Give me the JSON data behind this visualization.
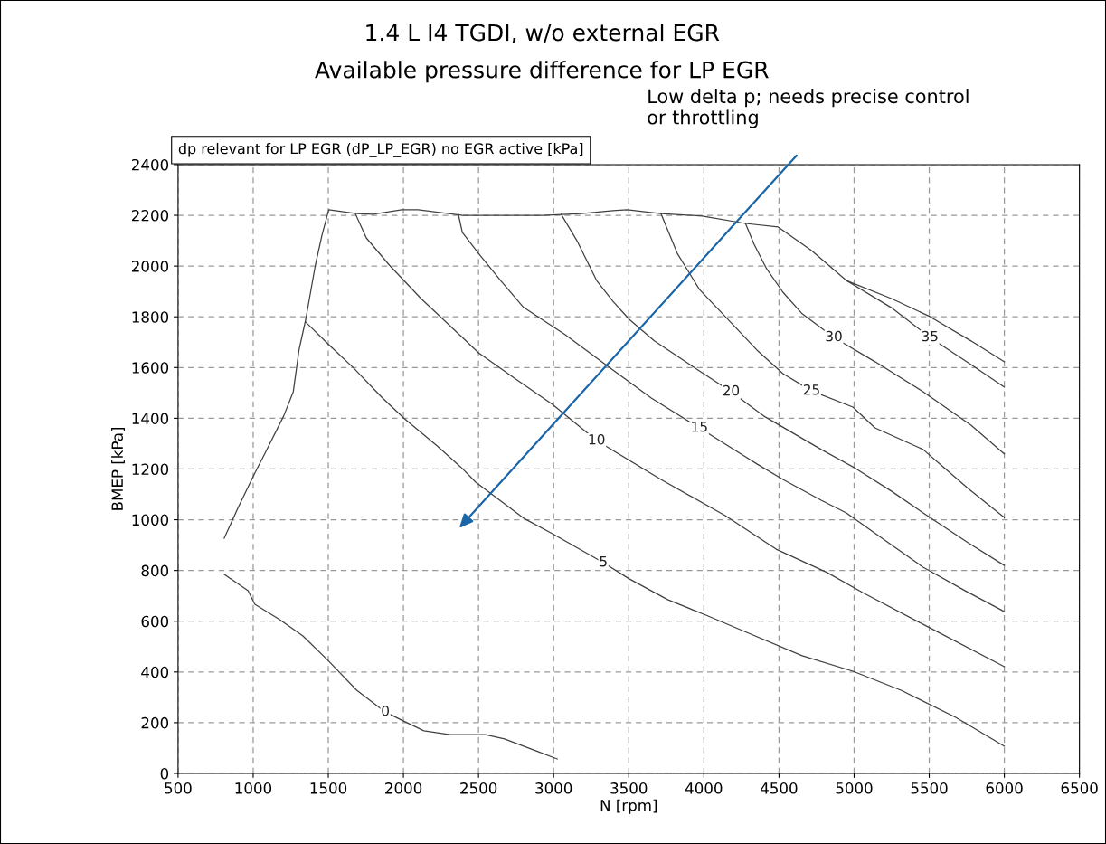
{
  "chart_data": {
    "type": "line",
    "title": "1.4 L I4 TGDI, w/o external EGR",
    "subtitle": "Available pressure difference for LP EGR",
    "xlabel": "N [rpm]",
    "ylabel": "BMEP [kPa]",
    "xlim": [
      500,
      6500
    ],
    "xticks": [
      500,
      1000,
      1500,
      2000,
      2500,
      3000,
      3500,
      4000,
      4500,
      5000,
      5500,
      6000,
      6500
    ],
    "ylim": [
      0,
      2400
    ],
    "yticks": [
      0,
      200,
      400,
      600,
      800,
      1000,
      1200,
      1400,
      1600,
      1800,
      2000,
      2200,
      2400
    ],
    "grid": true,
    "legend": false,
    "marker": "none",
    "line_style": "solid",
    "annotations": [
      "dp relevant for LP EGR (dP_LP_EGR) no EGR active [kPa]",
      "Low delta p; needs precise control\nor throttling"
    ],
    "series": [
      {
        "color": "#404040",
        "x": [
          807,
          903,
          1011,
          1082,
          1203,
          1267,
          1305,
          1350,
          1414,
          1458,
          1503,
          1689,
          1797,
          1989,
          2098,
          2392,
          2648,
          2929,
          3184,
          3395,
          3490,
          3714,
          3989,
          4277,
          4494,
          4717,
          4948,
          5248,
          5504,
          5778,
          6000
        ],
        "values": [
          927,
          1052,
          1184,
          1266,
          1409,
          1505,
          1669,
          1790,
          2004,
          2122,
          2222,
          2207,
          2204,
          2222,
          2222,
          2200,
          2200,
          2200,
          2207,
          2218,
          2222,
          2207,
          2197,
          2168,
          2154,
          2061,
          1943,
          1872,
          1801,
          1705,
          1623
        ]
      },
      {
        "name": "0",
        "color": "#404040",
        "x": [
          807,
          966,
          1011,
          1177,
          1331,
          1497,
          1689,
          1880,
          1989,
          2136,
          2309,
          2545,
          2673,
          2884,
          3024
        ],
        "values": [
          785,
          720,
          667,
          606,
          542,
          446,
          328,
          242,
          210,
          168,
          153,
          153,
          136,
          89,
          57
        ]
      },
      {
        "name": "5",
        "color": "#404040",
        "x": [
          1350,
          1497,
          1669,
          1861,
          2008,
          2225,
          2392,
          2481,
          2800,
          2992,
          3331,
          3503,
          3759,
          4014,
          4270,
          4654,
          4992,
          5312,
          5676,
          6000
        ],
        "values": [
          1779,
          1694,
          1598,
          1480,
          1398,
          1291,
          1202,
          1148,
          1006,
          945,
          831,
          767,
          685,
          624,
          560,
          464,
          403,
          328,
          221,
          107
        ]
      },
      {
        "name": "10",
        "color": "#404040",
        "x": [
          1682,
          1753,
          1906,
          2117,
          2290,
          2500,
          2756,
          2992,
          3286,
          3714,
          4142,
          4481,
          4820,
          5056,
          5459,
          6000
        ],
        "values": [
          2204,
          2111,
          2004,
          1872,
          1776,
          1658,
          1551,
          1455,
          1312,
          1159,
          1016,
          884,
          792,
          713,
          588,
          421
        ]
      },
      {
        "name": "15",
        "color": "#404040",
        "x": [
          2366,
          2392,
          2500,
          2647,
          2800,
          3075,
          3376,
          3650,
          3970,
          4353,
          4526,
          4781,
          4948,
          5203,
          5459,
          5740,
          6000
        ],
        "values": [
          2204,
          2133,
          2050,
          1943,
          1837,
          1730,
          1598,
          1480,
          1362,
          1220,
          1159,
          1077,
          1027,
          920,
          813,
          720,
          638
        ]
      },
      {
        "name": "20",
        "color": "#404040",
        "x": [
          3050,
          3158,
          3286,
          3395,
          3503,
          3670,
          3970,
          4181,
          4398,
          4781,
          5011,
          5248,
          5504,
          5759,
          6000
        ],
        "values": [
          2204,
          2097,
          1943,
          1861,
          1790,
          1705,
          1587,
          1505,
          1409,
          1277,
          1202,
          1113,
          1009,
          909,
          820
        ]
      },
      {
        "name": "25",
        "color": "#404040",
        "x": [
          3714,
          3823,
          3970,
          4142,
          4353,
          4526,
          4717,
          4992,
          5139,
          5459,
          5759,
          6000
        ],
        "values": [
          2207,
          2050,
          1908,
          1801,
          1669,
          1576,
          1508,
          1444,
          1362,
          1277,
          1123,
          1009
        ]
      },
      {
        "name": "30",
        "color": "#404040",
        "x": [
          4277,
          4334,
          4417,
          4526,
          4654,
          4865,
          5139,
          5459,
          5778,
          6000
        ],
        "values": [
          2168,
          2086,
          1990,
          1897,
          1812,
          1719,
          1623,
          1505,
          1373,
          1259
        ]
      },
      {
        "name": "35",
        "color": "#404040",
        "x": [
          4948,
          5248,
          5504,
          5778,
          6000
        ],
        "values": [
          1943,
          1836,
          1719,
          1612,
          1523
        ]
      }
    ]
  }
}
